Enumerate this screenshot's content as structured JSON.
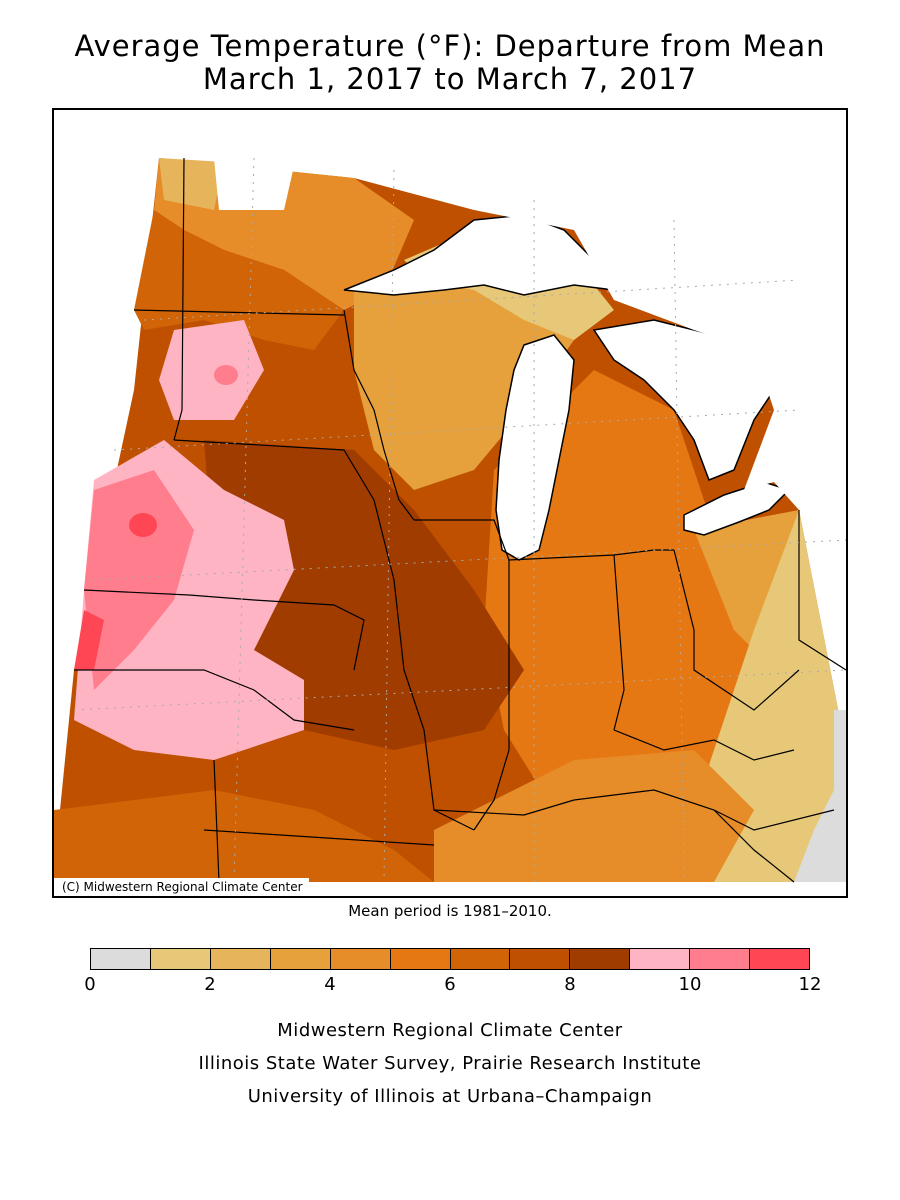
{
  "title": {
    "line1": "Average Temperature (°F): Departure from Mean",
    "line2": "March 1, 2017 to March 7, 2017"
  },
  "map": {
    "copyright": "(C) Midwestern Regional Climate Center",
    "mean_period": "Mean period is 1981–2010.",
    "region": "Upper Midwest / Great Lakes",
    "regional_pattern": [
      {
        "area": "Northwest (South Dakota / Nebraska border)",
        "departure_range_f": [
          9,
          12
        ]
      },
      {
        "area": "Minnesota / Iowa / Missouri / Illinois core",
        "departure_range_f": [
          7,
          9
        ]
      },
      {
        "area": "Wisconsin / Michigan lower peninsula / Indiana",
        "departure_range_f": [
          4,
          7
        ]
      },
      {
        "area": "Upper Michigan / Ohio / Kentucky edges",
        "departure_range_f": [
          1,
          4
        ]
      },
      {
        "area": "Far east edge (West Virginia)",
        "departure_range_f": [
          0,
          1
        ]
      }
    ]
  },
  "legend": {
    "units": "°F",
    "bins": [
      {
        "from": 0,
        "to": 1,
        "color": "#dcdcdc"
      },
      {
        "from": 1,
        "to": 2,
        "color": "#e6c878"
      },
      {
        "from": 2,
        "to": 3,
        "color": "#e6b45a"
      },
      {
        "from": 3,
        "to": 4,
        "color": "#e6a03c"
      },
      {
        "from": 4,
        "to": 5,
        "color": "#e68c28"
      },
      {
        "from": 5,
        "to": 6,
        "color": "#e67814"
      },
      {
        "from": 6,
        "to": 7,
        "color": "#d26408"
      },
      {
        "from": 7,
        "to": 8,
        "color": "#be5000"
      },
      {
        "from": 8,
        "to": 9,
        "color": "#a03c00"
      },
      {
        "from": 9,
        "to": 10,
        "color": "#ffb4c3"
      },
      {
        "from": 10,
        "to": 11,
        "color": "#ff7d8c"
      },
      {
        "from": 11,
        "to": 12,
        "color": "#ff4655"
      }
    ],
    "tick_labels": [
      "0",
      "2",
      "4",
      "6",
      "8",
      "10",
      "12"
    ]
  },
  "credits": {
    "line1": "Midwestern Regional Climate Center",
    "line2": "Illinois State Water Survey, Prairie Research Institute",
    "line3": "University of Illinois at Urbana–Champaign"
  }
}
